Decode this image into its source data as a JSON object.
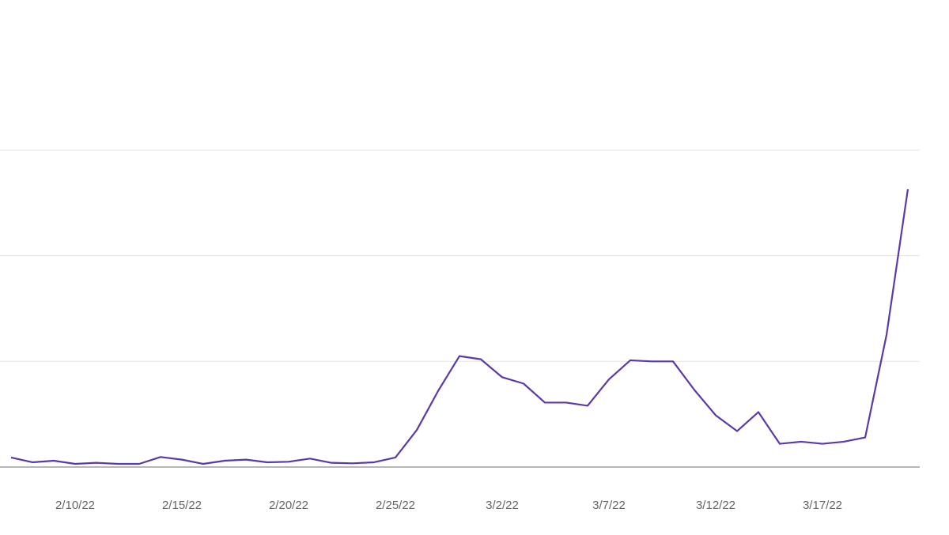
{
  "chart_data": {
    "type": "line",
    "categories": [
      null,
      null,
      null,
      "2/10/22",
      null,
      null,
      null,
      null,
      "2/15/22",
      null,
      null,
      null,
      null,
      "2/20/22",
      null,
      null,
      null,
      null,
      "2/25/22",
      null,
      null,
      null,
      null,
      "3/2/22",
      null,
      null,
      null,
      null,
      "3/7/22",
      null,
      null,
      null,
      null,
      "3/12/22",
      null,
      null,
      null,
      null,
      "3/17/22",
      null,
      null,
      null,
      null
    ],
    "series": [
      {
        "color": "#5c39a8",
        "values": [
          9,
          4.5,
          6,
          3,
          4,
          3,
          3,
          9.5,
          7,
          3,
          6,
          7,
          4.5,
          5,
          8,
          4,
          3.5,
          4.5,
          9,
          35,
          72,
          105,
          102,
          85,
          79,
          61,
          61,
          58,
          83,
          101,
          100,
          100,
          73,
          49,
          34,
          52,
          22,
          24,
          22,
          24,
          28,
          125,
          263
        ]
      }
    ],
    "ylim": [
      0,
      442
    ],
    "ygrid": [
      0,
      100,
      200,
      300
    ],
    "grid": true
  }
}
